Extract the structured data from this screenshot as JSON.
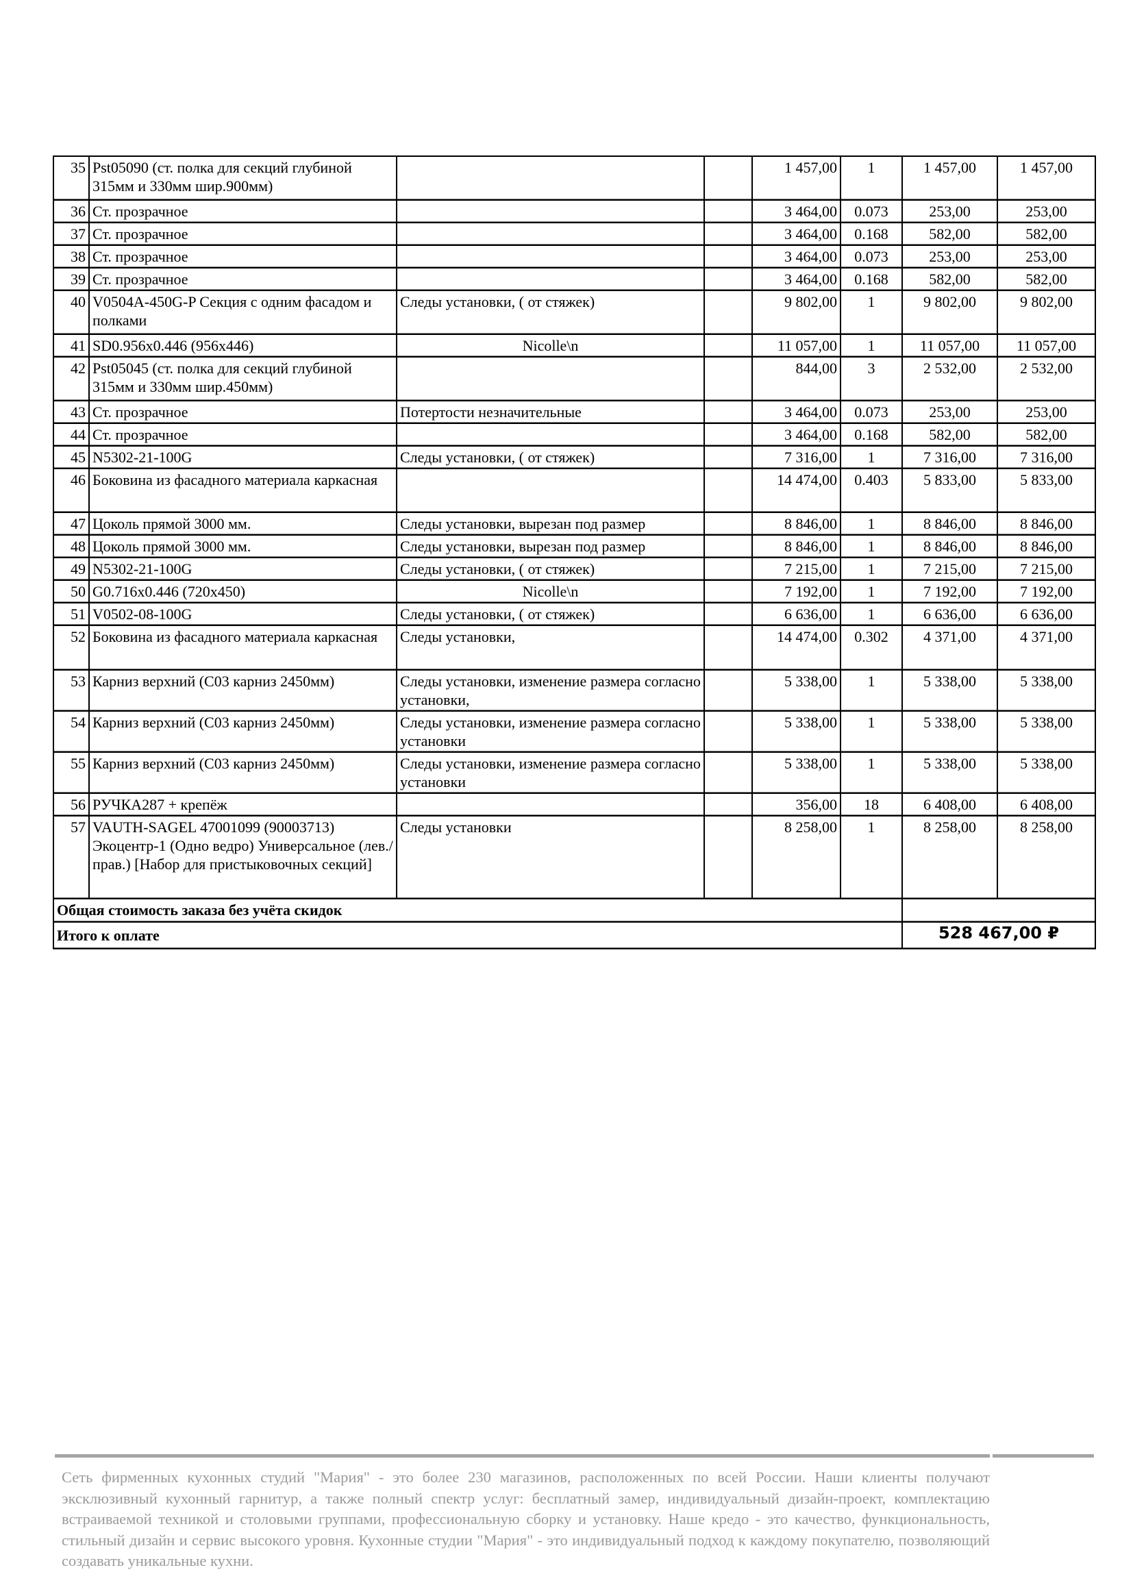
{
  "rows": [
    {
      "n": "35",
      "name": "Pst05090 (ст. полка для секций глубиной 315мм и 330мм шир.900мм)",
      "indent": true,
      "note": "",
      "price": "1 457,00",
      "qty": "1",
      "sum": "1 457,00",
      "total": "1 457,00"
    },
    {
      "n": "36",
      "name": "Ст. прозрачное",
      "indent": true,
      "note": "",
      "price": "3 464,00",
      "qty": "0.073",
      "sum": "253,00",
      "total": "253,00"
    },
    {
      "n": "37",
      "name": "Ст. прозрачное",
      "indent": true,
      "note": "",
      "price": "3 464,00",
      "qty": "0.168",
      "sum": "582,00",
      "total": "582,00"
    },
    {
      "n": "38",
      "name": "Ст. прозрачное",
      "indent": true,
      "note": "",
      "price": "3 464,00",
      "qty": "0.073",
      "sum": "253,00",
      "total": "253,00"
    },
    {
      "n": "39",
      "name": "Ст. прозрачное",
      "indent": true,
      "note": "",
      "price": "3 464,00",
      "qty": "0.168",
      "sum": "582,00",
      "total": "582,00"
    },
    {
      "n": "40",
      "name": "V0504A-450G-P Секция с одним фасадом и полками",
      "indent": false,
      "note": "Следы установки, ( от стяжек)",
      "price": "9 802,00",
      "qty": "1",
      "sum": "9 802,00",
      "total": "9 802,00"
    },
    {
      "n": "41",
      "name": "SD0.956x0.446 (956x446)",
      "indent": true,
      "note": "Nicolle\\n",
      "noteCenter": true,
      "price": "11 057,00",
      "qty": "1",
      "sum": "11 057,00",
      "total": "11 057,00"
    },
    {
      "n": "42",
      "name": "Pst05045 (ст. полка для секций глубиной 315мм и 330мм шир.450мм)",
      "indent": true,
      "note": "",
      "price": "844,00",
      "qty": "3",
      "sum": "2 532,00",
      "total": "2 532,00"
    },
    {
      "n": "43",
      "name": "Ст. прозрачное",
      "indent": true,
      "note": "Потертости незначительные",
      "price": "3 464,00",
      "qty": "0.073",
      "sum": "253,00",
      "total": "253,00"
    },
    {
      "n": "44",
      "name": "Ст. прозрачное",
      "indent": true,
      "note": "",
      "price": "3 464,00",
      "qty": "0.168",
      "sum": "582,00",
      "total": "582,00"
    },
    {
      "n": "45",
      "name": "N5302-21-100G",
      "indent": false,
      "note": "Следы установки, ( от стяжек)",
      "price": "7 316,00",
      "qty": "1",
      "sum": "7 316,00",
      "total": "7 316,00"
    },
    {
      "n": "46",
      "name": "Боковина из фасадного материала каркасная",
      "indent": true,
      "note": "",
      "price": "14 474,00",
      "qty": "0.403",
      "sum": "5 833,00",
      "total": "5 833,00"
    },
    {
      "n": "47",
      "name": "Цоколь прямой 3000 мм.",
      "indent": false,
      "note": "Следы установки, вырезан под размер",
      "price": "8 846,00",
      "qty": "1",
      "sum": "8 846,00",
      "total": "8 846,00"
    },
    {
      "n": "48",
      "name": "Цоколь прямой 3000 мм.",
      "indent": false,
      "note": "Следы установки, вырезан под размер",
      "price": "8 846,00",
      "qty": "1",
      "sum": "8 846,00",
      "total": "8 846,00"
    },
    {
      "n": "49",
      "name": "N5302-21-100G",
      "indent": false,
      "note": "Следы установки, ( от стяжек)",
      "price": "7 215,00",
      "qty": "1",
      "sum": "7 215,00",
      "total": "7 215,00"
    },
    {
      "n": "50",
      "name": "G0.716x0.446 (720x450)",
      "indent": false,
      "note": "Nicolle\\n",
      "noteCenter": true,
      "price": "7 192,00",
      "qty": "1",
      "sum": "7 192,00",
      "total": "7 192,00"
    },
    {
      "n": "51",
      "name": "V0502-08-100G",
      "indent": false,
      "note": "Следы установки, ( от стяжек)",
      "price": "6 636,00",
      "qty": "1",
      "sum": "6 636,00",
      "total": "6 636,00"
    },
    {
      "n": "52",
      "name": "Боковина из фасадного материала каркасная",
      "indent": true,
      "note": "Следы установки,",
      "price": "14 474,00",
      "qty": "0.302",
      "sum": "4 371,00",
      "total": "4 371,00"
    },
    {
      "n": "53",
      "name": "Карниз верхний (С03 карниз 2450мм)",
      "indent": false,
      "note": "Следы установки, изменение размера согласно установки,",
      "price": "5 338,00",
      "qty": "1",
      "sum": "5 338,00",
      "total": "5 338,00"
    },
    {
      "n": "54",
      "name": "Карниз верхний (С03 карниз 2450мм)",
      "indent": false,
      "note": "Следы установки, изменение размера согласно установки",
      "price": "5 338,00",
      "qty": "1",
      "sum": "5 338,00",
      "total": "5 338,00"
    },
    {
      "n": "55",
      "name": "Карниз верхний (С03 карниз 2450мм)",
      "indent": false,
      "note": "Следы установки, изменение размера согласно установки",
      "price": "5 338,00",
      "qty": "1",
      "sum": "5 338,00",
      "total": "5 338,00"
    },
    {
      "n": "56",
      "name": "РУЧКА287 + крепёж",
      "indent": false,
      "note": "",
      "price": "356,00",
      "qty": "18",
      "sum": "6 408,00",
      "total": "6 408,00"
    },
    {
      "n": "57",
      "name": "VAUTH-SAGEL 47001099 (90003713) Экоцентр-1 (Одно ведро) Универсальное (лев./прав.) [Набор для пристыковочных секций]",
      "indent": false,
      "note": "Следы установки",
      "noteBig": true,
      "price": "8 258,00",
      "qty": "1",
      "sum": "8 258,00",
      "total": "8 258,00"
    }
  ],
  "totals": {
    "without_discount_label": "Общая стоимость заказа без учёта скидок",
    "without_discount_value": "",
    "to_pay_label": "Итого к оплате",
    "to_pay_value": "528 467,00 ₽"
  },
  "footer": {
    "text": "Сеть фирменных кухонных студий \"Мария\" - это более 230 магазинов, расположенных по всей России. Наши клиенты получают эксклюзивный кухонный гарнитур, а также полный спектр услуг: бесплатный замер, индивидуальный дизайн-проект, комплектацию встраиваемой техникой и столовыми группами, профессиональную сборку и установку. Наше кредо - это качество, функциональность, стильный дизайн и сервис высокого уровня. Кухонные студии \"Мария\" - это индивидуальный подход к каждому покупателю, позволяющий создавать уникальные кухни."
  }
}
